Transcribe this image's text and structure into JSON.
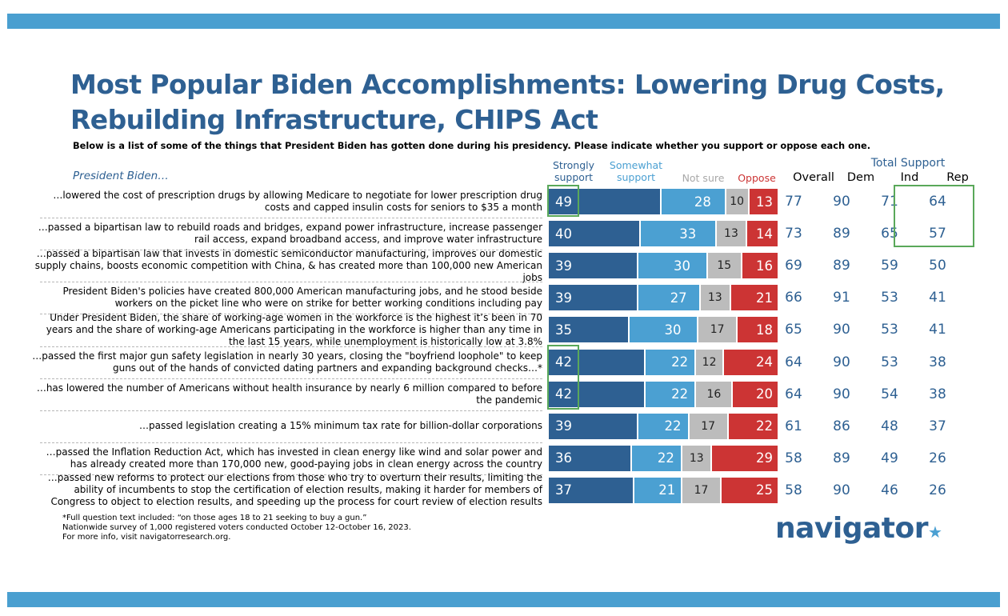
{
  "title_line1": "Most Popular Biden Accomplishments: Lowering Drug Costs,",
  "title_line2": "Rebuilding Infrastructure, CHIPS Act",
  "subtitle": "Below is a list of some of the things that President Biden has gotten done during his presidency. Please indicate whether you support or oppose each one.",
  "row_header": "President Biden…",
  "legend": {
    "strongly_support": "Strongly support",
    "somewhat_support": "Somewhat support",
    "not_sure": "Not sure",
    "oppose": "Oppose"
  },
  "total_support_header": "Total Support",
  "columns": {
    "overall": "Overall",
    "dem": "Dem",
    "ind": "Ind",
    "rep": "Rep"
  },
  "colors": {
    "strong": "#2e6092",
    "somewhat": "#4ba0d2",
    "not_sure": "#bcbcbc",
    "oppose": "#cc3434",
    "highlight": "#5aa85a",
    "band": "#4a9fd0"
  },
  "footnotes": [
    "*Full question text included: “on those ages 18 to 21 seeking to buy a gun.”",
    "Nationwide survey of 1,000 registered voters conducted October 12-October 16, 2023.",
    "For more info, visit navigatorresearch.org."
  ],
  "logo_text": "navigator",
  "chart_data": {
    "type": "bar",
    "stacked": true,
    "orientation": "horizontal",
    "categories": [
      "…lowered the cost of prescription drugs by allowing Medicare to negotiate for lower prescription drug costs and capped insulin costs for seniors to $35 a month",
      "…passed a bipartisan law to rebuild roads and bridges, expand power infrastructure, increase passenger rail access, expand broadband access, and improve water infrastructure",
      "…passed a bipartisan law that invests in domestic semiconductor manufacturing, improves our domestic supply chains, boosts economic competition with China, & has created more than 100,000 new American jobs",
      "President Biden's policies have created 800,000 American manufacturing jobs, and he stood beside workers on the picket line who were on strike for better working conditions including pay",
      "Under President Biden, the share of working-age women in the workforce is the highest it’s been in 70 years and the share of working-age Americans participating in the workforce is higher than any time in the last 15 years, while unemployment is historically low at 3.8%",
      "…passed the first major gun safety legislation in nearly 30 years, closing the \"boyfriend loophole\" to keep guns out of the hands of convicted dating partners and expanding background checks…*",
      "…has lowered the number of Americans without health insurance by nearly 6 million compared to before the pandemic",
      "…passed legislation creating a 15% minimum tax rate for billion-dollar corporations",
      "…passed the Inflation Reduction Act, which has invested in clean energy like wind and solar power and has already created more than 170,000 new, good-paying jobs in clean energy across the country",
      "…passed new reforms to protect our elections from those who try to overturn their results, limiting the ability of incumbents to stop the certification of election results, making it harder for members of Congress to object to election results, and speeding up the process for court review of election results"
    ],
    "series": [
      {
        "name": "Strongly support",
        "values": [
          49,
          40,
          39,
          39,
          35,
          42,
          42,
          39,
          36,
          37
        ]
      },
      {
        "name": "Somewhat support",
        "values": [
          28,
          33,
          30,
          27,
          30,
          22,
          22,
          22,
          22,
          21
        ]
      },
      {
        "name": "Not sure",
        "values": [
          10,
          13,
          15,
          13,
          17,
          12,
          16,
          17,
          13,
          17
        ]
      },
      {
        "name": "Oppose",
        "values": [
          13,
          14,
          16,
          21,
          18,
          24,
          20,
          22,
          29,
          25
        ]
      }
    ],
    "total_support": {
      "Overall": [
        77,
        73,
        69,
        66,
        65,
        64,
        64,
        61,
        58,
        58
      ],
      "Dem": [
        90,
        89,
        89,
        91,
        90,
        90,
        90,
        86,
        89,
        90
      ],
      "Ind": [
        71,
        65,
        59,
        53,
        53,
        53,
        54,
        48,
        49,
        46
      ],
      "Rep": [
        64,
        57,
        50,
        41,
        41,
        38,
        38,
        37,
        26,
        26
      ]
    },
    "highlighted": {
      "strongly_support_rows": [
        0,
        5,
        6
      ],
      "ind_rep_rows": [
        0,
        1
      ]
    }
  }
}
